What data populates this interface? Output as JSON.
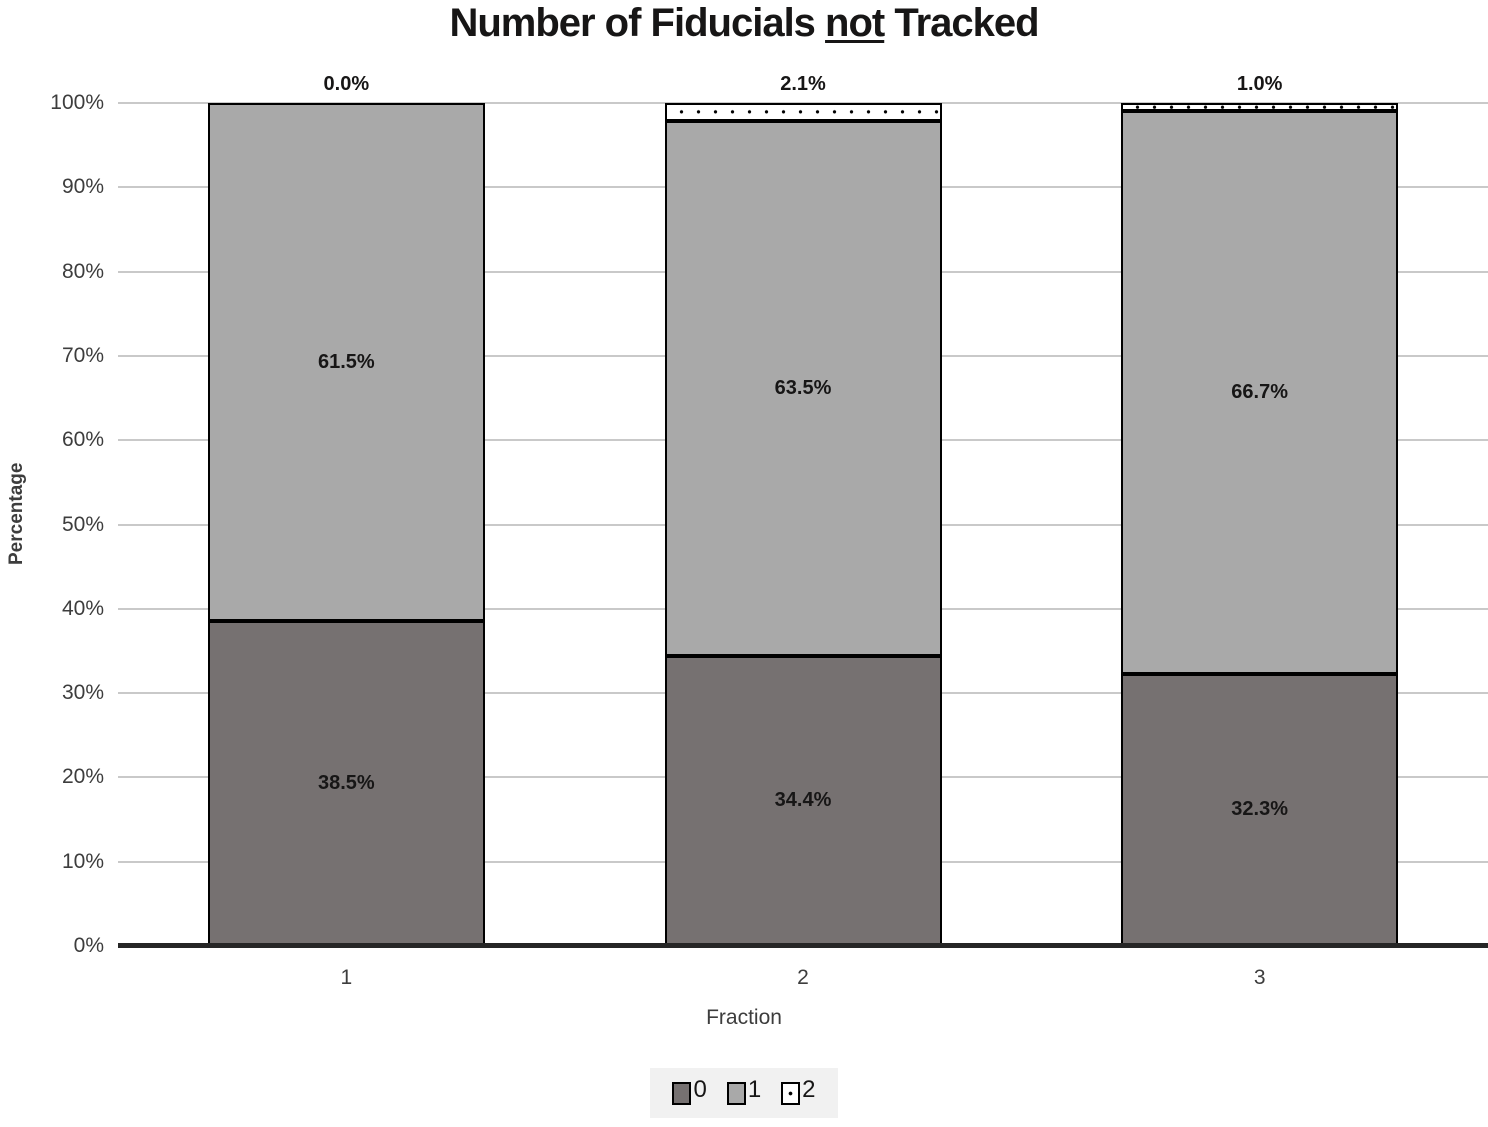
{
  "title": {
    "part1": "Number of Fiducials ",
    "part2": "not",
    "part3": " Tracked"
  },
  "chart_data": {
    "type": "bar",
    "stacked": true,
    "title": "Number of Fiducials not Tracked",
    "xlabel": "Fraction",
    "ylabel": "Percentage",
    "categories": [
      "1",
      "2",
      "3"
    ],
    "series": [
      {
        "name": "0",
        "color": "#767171",
        "pattern": "solid",
        "values": [
          38.5,
          34.4,
          32.3
        ],
        "data_labels": [
          "38.5%",
          "34.4%",
          "32.3%"
        ],
        "label_position": "inside"
      },
      {
        "name": "1",
        "color": "#a9a9a9",
        "pattern": "solid",
        "values": [
          61.5,
          63.5,
          66.7
        ],
        "data_labels": [
          "61.5%",
          "63.5%",
          "66.7%"
        ],
        "label_position": "inside"
      },
      {
        "name": "2",
        "color": "#ffffff",
        "pattern": "dotted",
        "values": [
          0.0,
          2.1,
          1.0
        ],
        "data_labels": [
          "0.0%",
          "2.1%",
          "1.0%"
        ],
        "label_position": "above"
      }
    ],
    "yticks": [
      "0%",
      "10%",
      "20%",
      "30%",
      "40%",
      "50%",
      "60%",
      "70%",
      "80%",
      "90%",
      "100%"
    ],
    "ylim": [
      0,
      100
    ],
    "grid": true,
    "legend_position": "bottom",
    "colors": {
      "gridline": "#c9c9c9",
      "axis_line": "#262626",
      "bar_border": "#000000",
      "legend_background": "#f1f1f1"
    }
  }
}
